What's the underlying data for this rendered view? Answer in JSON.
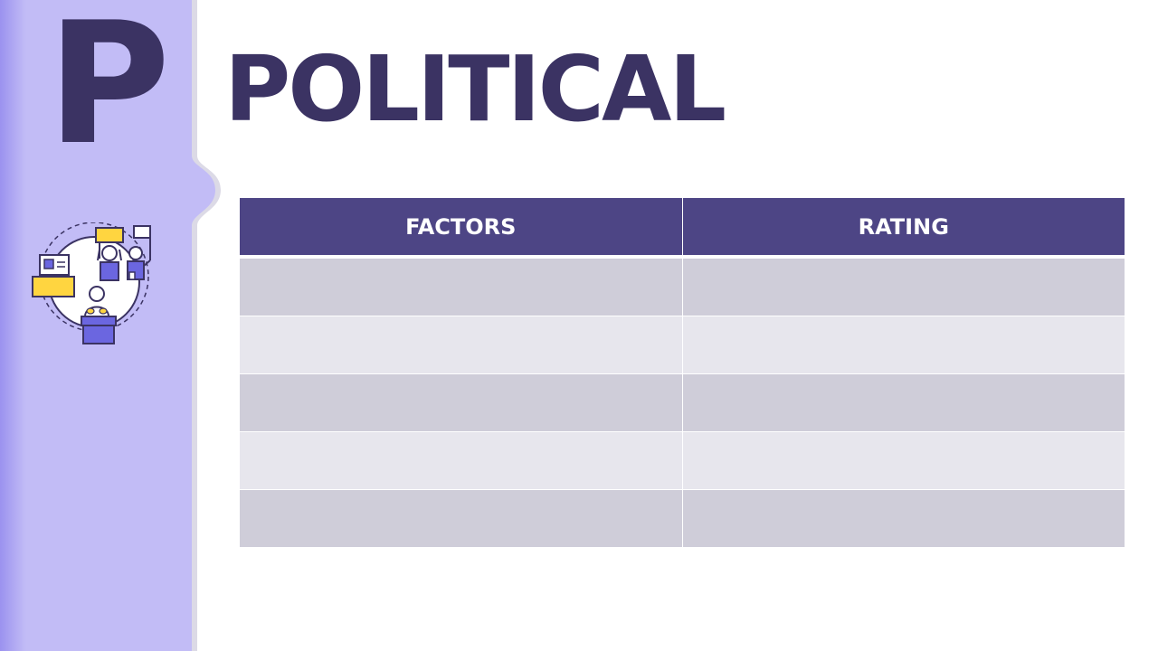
{
  "slide": {
    "letter": "P",
    "title": "POLITICAL",
    "colors": {
      "sidebar": "#c2bcf6",
      "sidebar_edge": "#9b92ef",
      "title_text": "#3b3363",
      "header_fill": "#4d4585",
      "row_dark": "#cfcdd9",
      "row_light": "#e7e6ed",
      "accent_yellow": "#ffd540",
      "accent_blue": "#6b66e0"
    },
    "illustration_icon": "political-election-icon"
  },
  "table": {
    "headers": [
      "FACTORS",
      "RATING"
    ],
    "rows": [
      [
        "",
        ""
      ],
      [
        "",
        ""
      ],
      [
        "",
        ""
      ],
      [
        "",
        ""
      ],
      [
        "",
        ""
      ]
    ]
  }
}
